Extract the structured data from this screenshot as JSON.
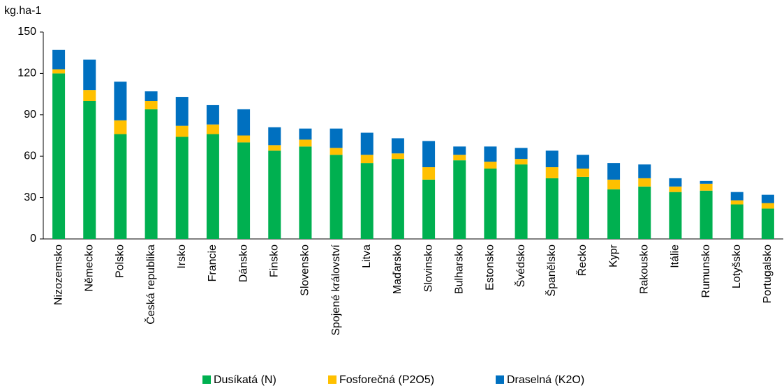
{
  "chart_data": {
    "type": "stacked-bar",
    "y_label": "kg.ha-1",
    "categories": [
      "Nizozemsko",
      "Německo",
      "Polsko",
      "Česká republika",
      "Irsko",
      "Francie",
      "Dánsko",
      "Finsko",
      "Slovensko",
      "Spojené království",
      "Litva",
      "Maďarsko",
      "Slovinsko",
      "Bulharsko",
      "Estonsko",
      "Švédsko",
      "Španělsko",
      "Řecko",
      "Kypr",
      "Rakousko",
      "Itálie",
      "Rumunsko",
      "Lotyšsko",
      "Portugalsko"
    ],
    "series": [
      {
        "name": "Dusíkatá (N)",
        "color": "#00b050",
        "values": [
          120,
          100,
          76,
          94,
          74,
          76,
          70,
          64,
          67,
          61,
          55,
          58,
          43,
          57,
          51,
          54,
          44,
          45,
          36,
          38,
          34,
          35,
          25,
          22
        ]
      },
      {
        "name": "Fosforečná (P2O5)",
        "color": "#ffc000",
        "values": [
          3,
          8,
          10,
          6,
          8,
          7,
          5,
          4,
          5,
          5,
          6,
          4,
          9,
          4,
          5,
          4,
          8,
          6,
          7,
          6,
          4,
          5,
          3,
          4
        ]
      },
      {
        "name": "Draselná (K2O)",
        "color": "#0070c0",
        "values": [
          14,
          22,
          28,
          7,
          21,
          14,
          19,
          13,
          8,
          14,
          16,
          11,
          19,
          6,
          11,
          8,
          12,
          10,
          12,
          10,
          6,
          2,
          6,
          6
        ]
      }
    ],
    "ylim": [
      0,
      150
    ],
    "yticks": [
      0,
      30,
      60,
      90,
      120,
      150
    ],
    "grid": false,
    "legend": "bottom"
  }
}
